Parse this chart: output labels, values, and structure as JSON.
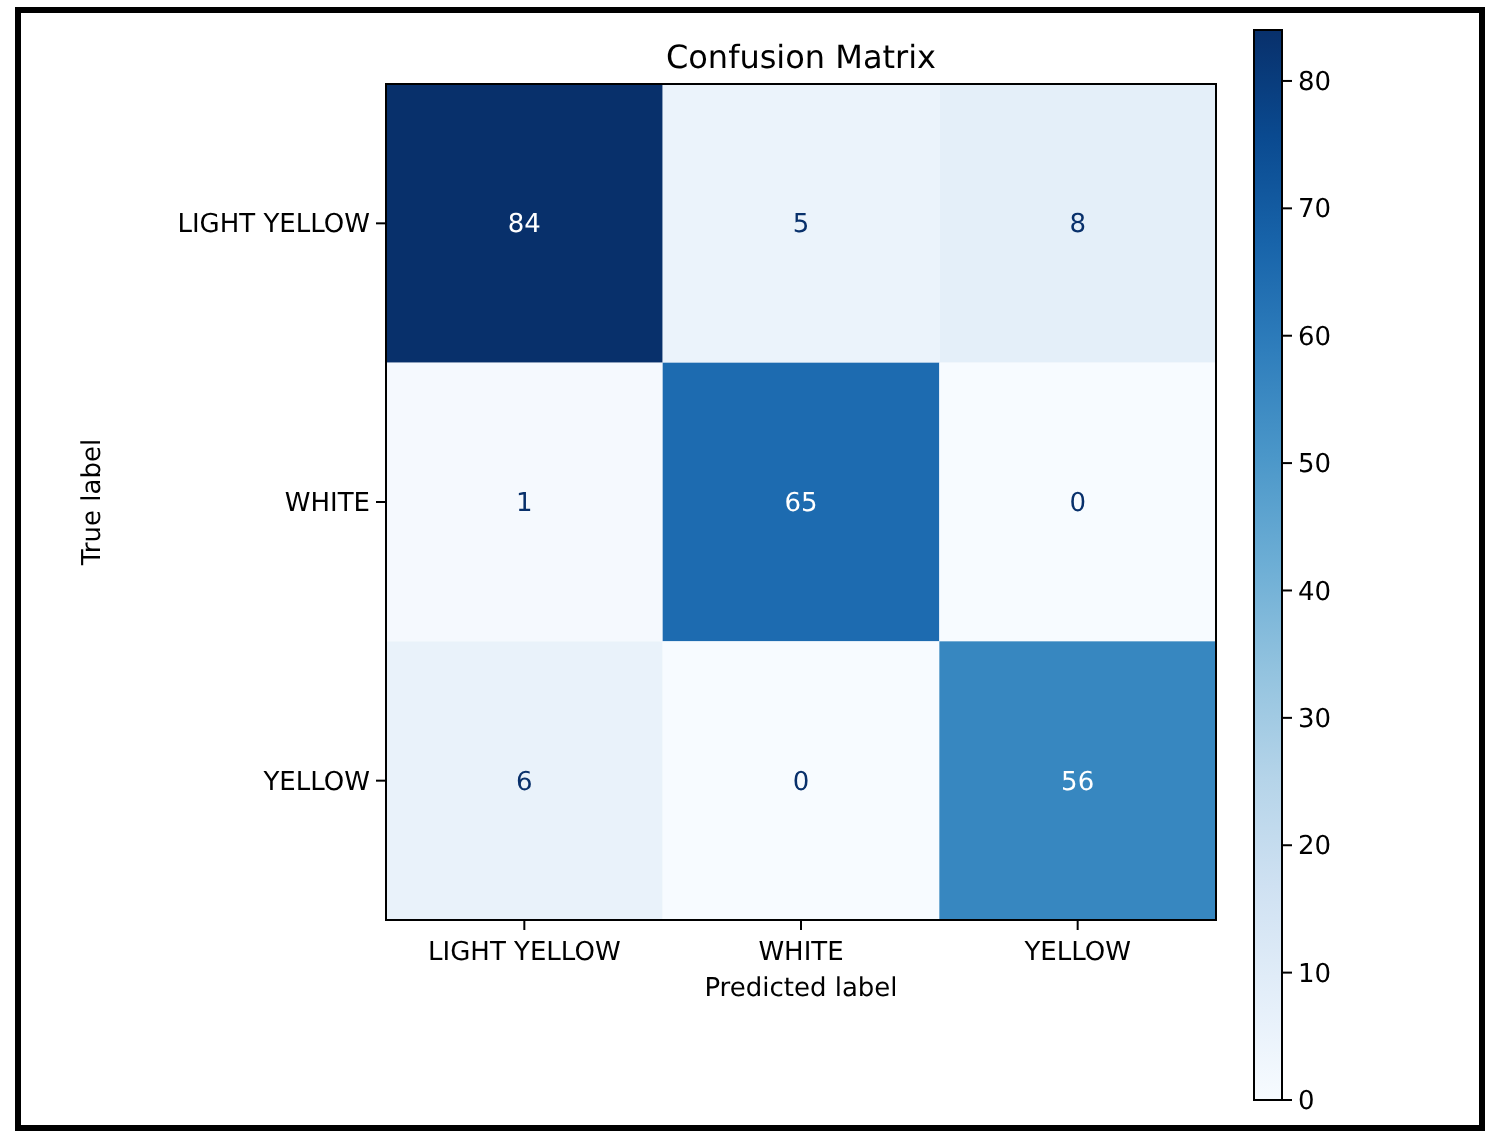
{
  "chart_data": {
    "type": "heatmap",
    "title": "Confusion Matrix",
    "xlabel": "Predicted label",
    "ylabel": "True label",
    "categories": [
      "LIGHT YELLOW",
      "WHITE",
      "YELLOW"
    ],
    "y_categories": [
      "LIGHT YELLOW",
      "WHITE",
      "YELLOW"
    ],
    "cells": [
      [
        84,
        5,
        8
      ],
      [
        1,
        65,
        0
      ],
      [
        6,
        0,
        56
      ]
    ],
    "data_labels": true,
    "clim": [
      0,
      84
    ],
    "cticks": [
      0,
      10,
      20,
      30,
      40,
      50,
      60,
      70,
      80
    ]
  }
}
